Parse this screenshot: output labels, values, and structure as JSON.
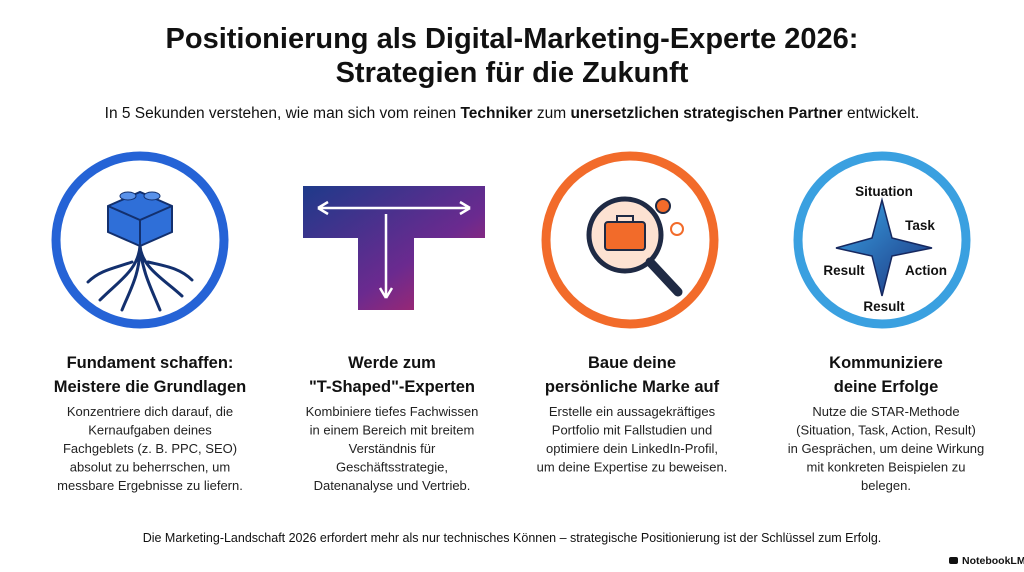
{
  "header": {
    "title_lines": [
      "Positionierung als Digital-Marketing-Experte 2026:",
      "Strategien für die Zukunft"
    ],
    "subtitle_parts": [
      {
        "text": "In 5 Sekunden verstehen, wie man sich vom reinen ",
        "bold": false
      },
      {
        "text": "Techniker",
        "bold": true
      },
      {
        "text": " zum ",
        "bold": false
      },
      {
        "text": "unersetzlichen strategischen Partner",
        "bold": true
      },
      {
        "text": " entwickelt.",
        "bold": false
      }
    ]
  },
  "cards": [
    {
      "heading_lines": [
        "Fundament schaffen:",
        "Meistere die Grundlagen"
      ],
      "body_lines": [
        "Konzentriere dich darauf, die",
        "Kernaufgaben deines",
        "Fachgeblets (z. B. PPC, SEO)",
        "absolut zu beherrschen, um",
        "messbare Ergebnisse zu liefern."
      ]
    },
    {
      "heading_lines": [
        "Werde zum",
        "\"T-Shaped\"-Experten"
      ],
      "body_lines": [
        "Kombiniere tiefes Fachwissen",
        "in einem Bereich mit breitem",
        "Verständnis für",
        "Geschäftsstrategie,",
        "Datenanalyse und Vertrieb."
      ]
    },
    {
      "heading_lines": [
        "Baue deine",
        "persönliche Marke auf"
      ],
      "body_lines": [
        "Erstelle ein aussagekräftiges",
        "Portfolio mit Fallstudien und",
        "optimiere dein LinkedIn-Profil,",
        "um deine Expertise zu beweisen."
      ]
    },
    {
      "heading_lines": [
        "Kommuniziere",
        "deine Erfolge"
      ],
      "body_lines": [
        "Nutze die STAR-Methode",
        "(Situation, Task, Action, Result)",
        "in Gesprächen, um deine Wirkung",
        "mit konkreten Beispielen zu",
        "belegen."
      ],
      "icon_labels": [
        "Situation",
        "Task",
        "Result",
        "Action",
        "Result"
      ]
    }
  ],
  "footer": "Die Marketing-Landschaft 2026 erfordert mehr als nur technisches Können – strategische Positionierung ist der Schlüssel zum Erfolg.",
  "brand": "NotebookLM"
}
